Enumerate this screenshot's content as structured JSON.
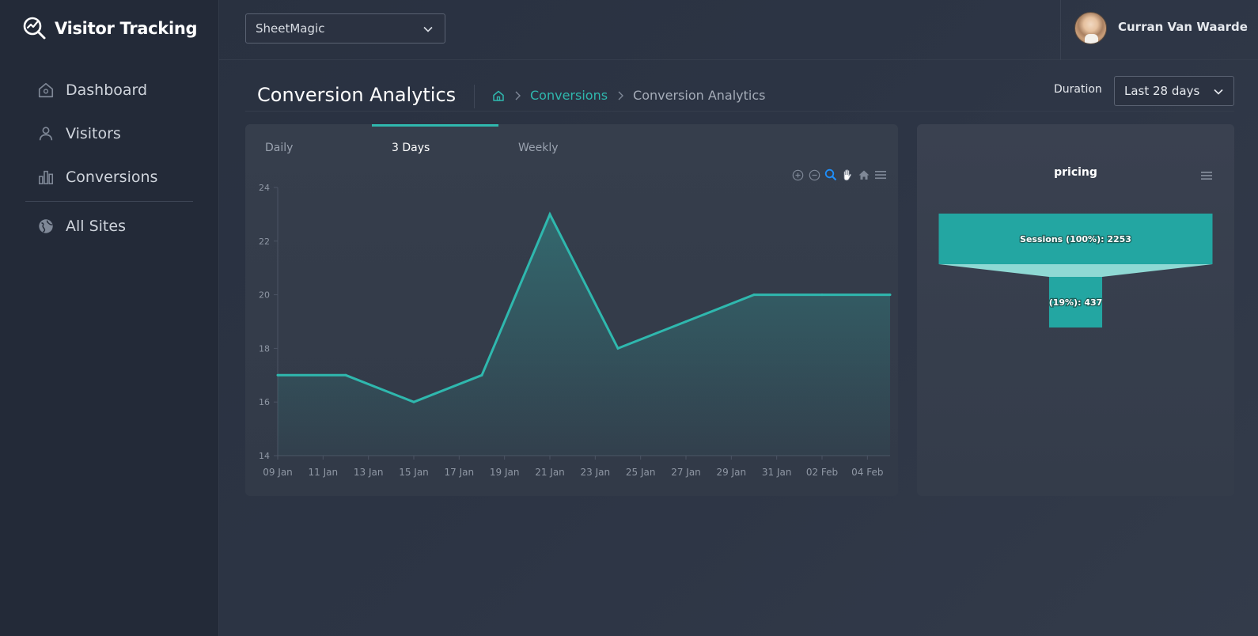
{
  "app": {
    "title": "Visitor Tracking"
  },
  "sidebar": {
    "items": [
      {
        "label": "Dashboard",
        "icon": "home-icon"
      },
      {
        "label": "Visitors",
        "icon": "user-icon"
      },
      {
        "label": "Conversions",
        "icon": "bar-chart-icon"
      },
      {
        "label": "All Sites",
        "icon": "globe-icon"
      }
    ]
  },
  "header": {
    "site_select": {
      "value": "SheetMagic"
    },
    "user": {
      "name": "Curran Van Waarde"
    }
  },
  "page": {
    "title": "Conversion Analytics",
    "breadcrumb": [
      "Conversions",
      "Conversion Analytics"
    ],
    "duration_label": "Duration",
    "duration_value": "Last 28 days"
  },
  "tabs": [
    {
      "label": "Daily",
      "active": false
    },
    {
      "label": "3 Days",
      "active": true
    },
    {
      "label": "Weekly",
      "active": false
    }
  ],
  "toolbar": {
    "icons": [
      "zoom-in-icon",
      "zoom-out-icon",
      "zoom-select-icon",
      "pan-hand-icon",
      "reset-home-icon",
      "menu-icon"
    ]
  },
  "colors": {
    "accent": "#2fb8ae",
    "funnel": "#23a6a2",
    "funnel_neck": "#8fd9d4"
  },
  "chart_data": [
    {
      "type": "area",
      "x": [
        "09 Jan",
        "12 Jan",
        "15 Jan",
        "18 Jan",
        "21 Jan",
        "24 Jan",
        "27 Jan",
        "30 Jan",
        "02 Feb",
        "05 Feb"
      ],
      "series": [
        {
          "values": [
            17,
            17,
            16,
            17,
            23,
            18,
            19,
            20,
            20,
            20
          ]
        }
      ],
      "x_tick_labels": [
        "09 Jan",
        "11 Jan",
        "13 Jan",
        "15 Jan",
        "17 Jan",
        "19 Jan",
        "21 Jan",
        "23 Jan",
        "25 Jan",
        "27 Jan",
        "29 Jan",
        "31 Jan",
        "02 Feb",
        "04 Feb"
      ],
      "y_ticks": [
        14,
        16,
        18,
        20,
        22,
        24
      ],
      "ylim": [
        14,
        24
      ],
      "xlim": [
        "09 Jan",
        "05 Feb"
      ],
      "grid": false
    },
    {
      "type": "funnel",
      "title": "pricing",
      "stages": [
        {
          "label": "Sessions (100%): 2253",
          "value": 2253
        },
        {
          "label": "(19%): 437",
          "value": 437
        }
      ]
    }
  ]
}
